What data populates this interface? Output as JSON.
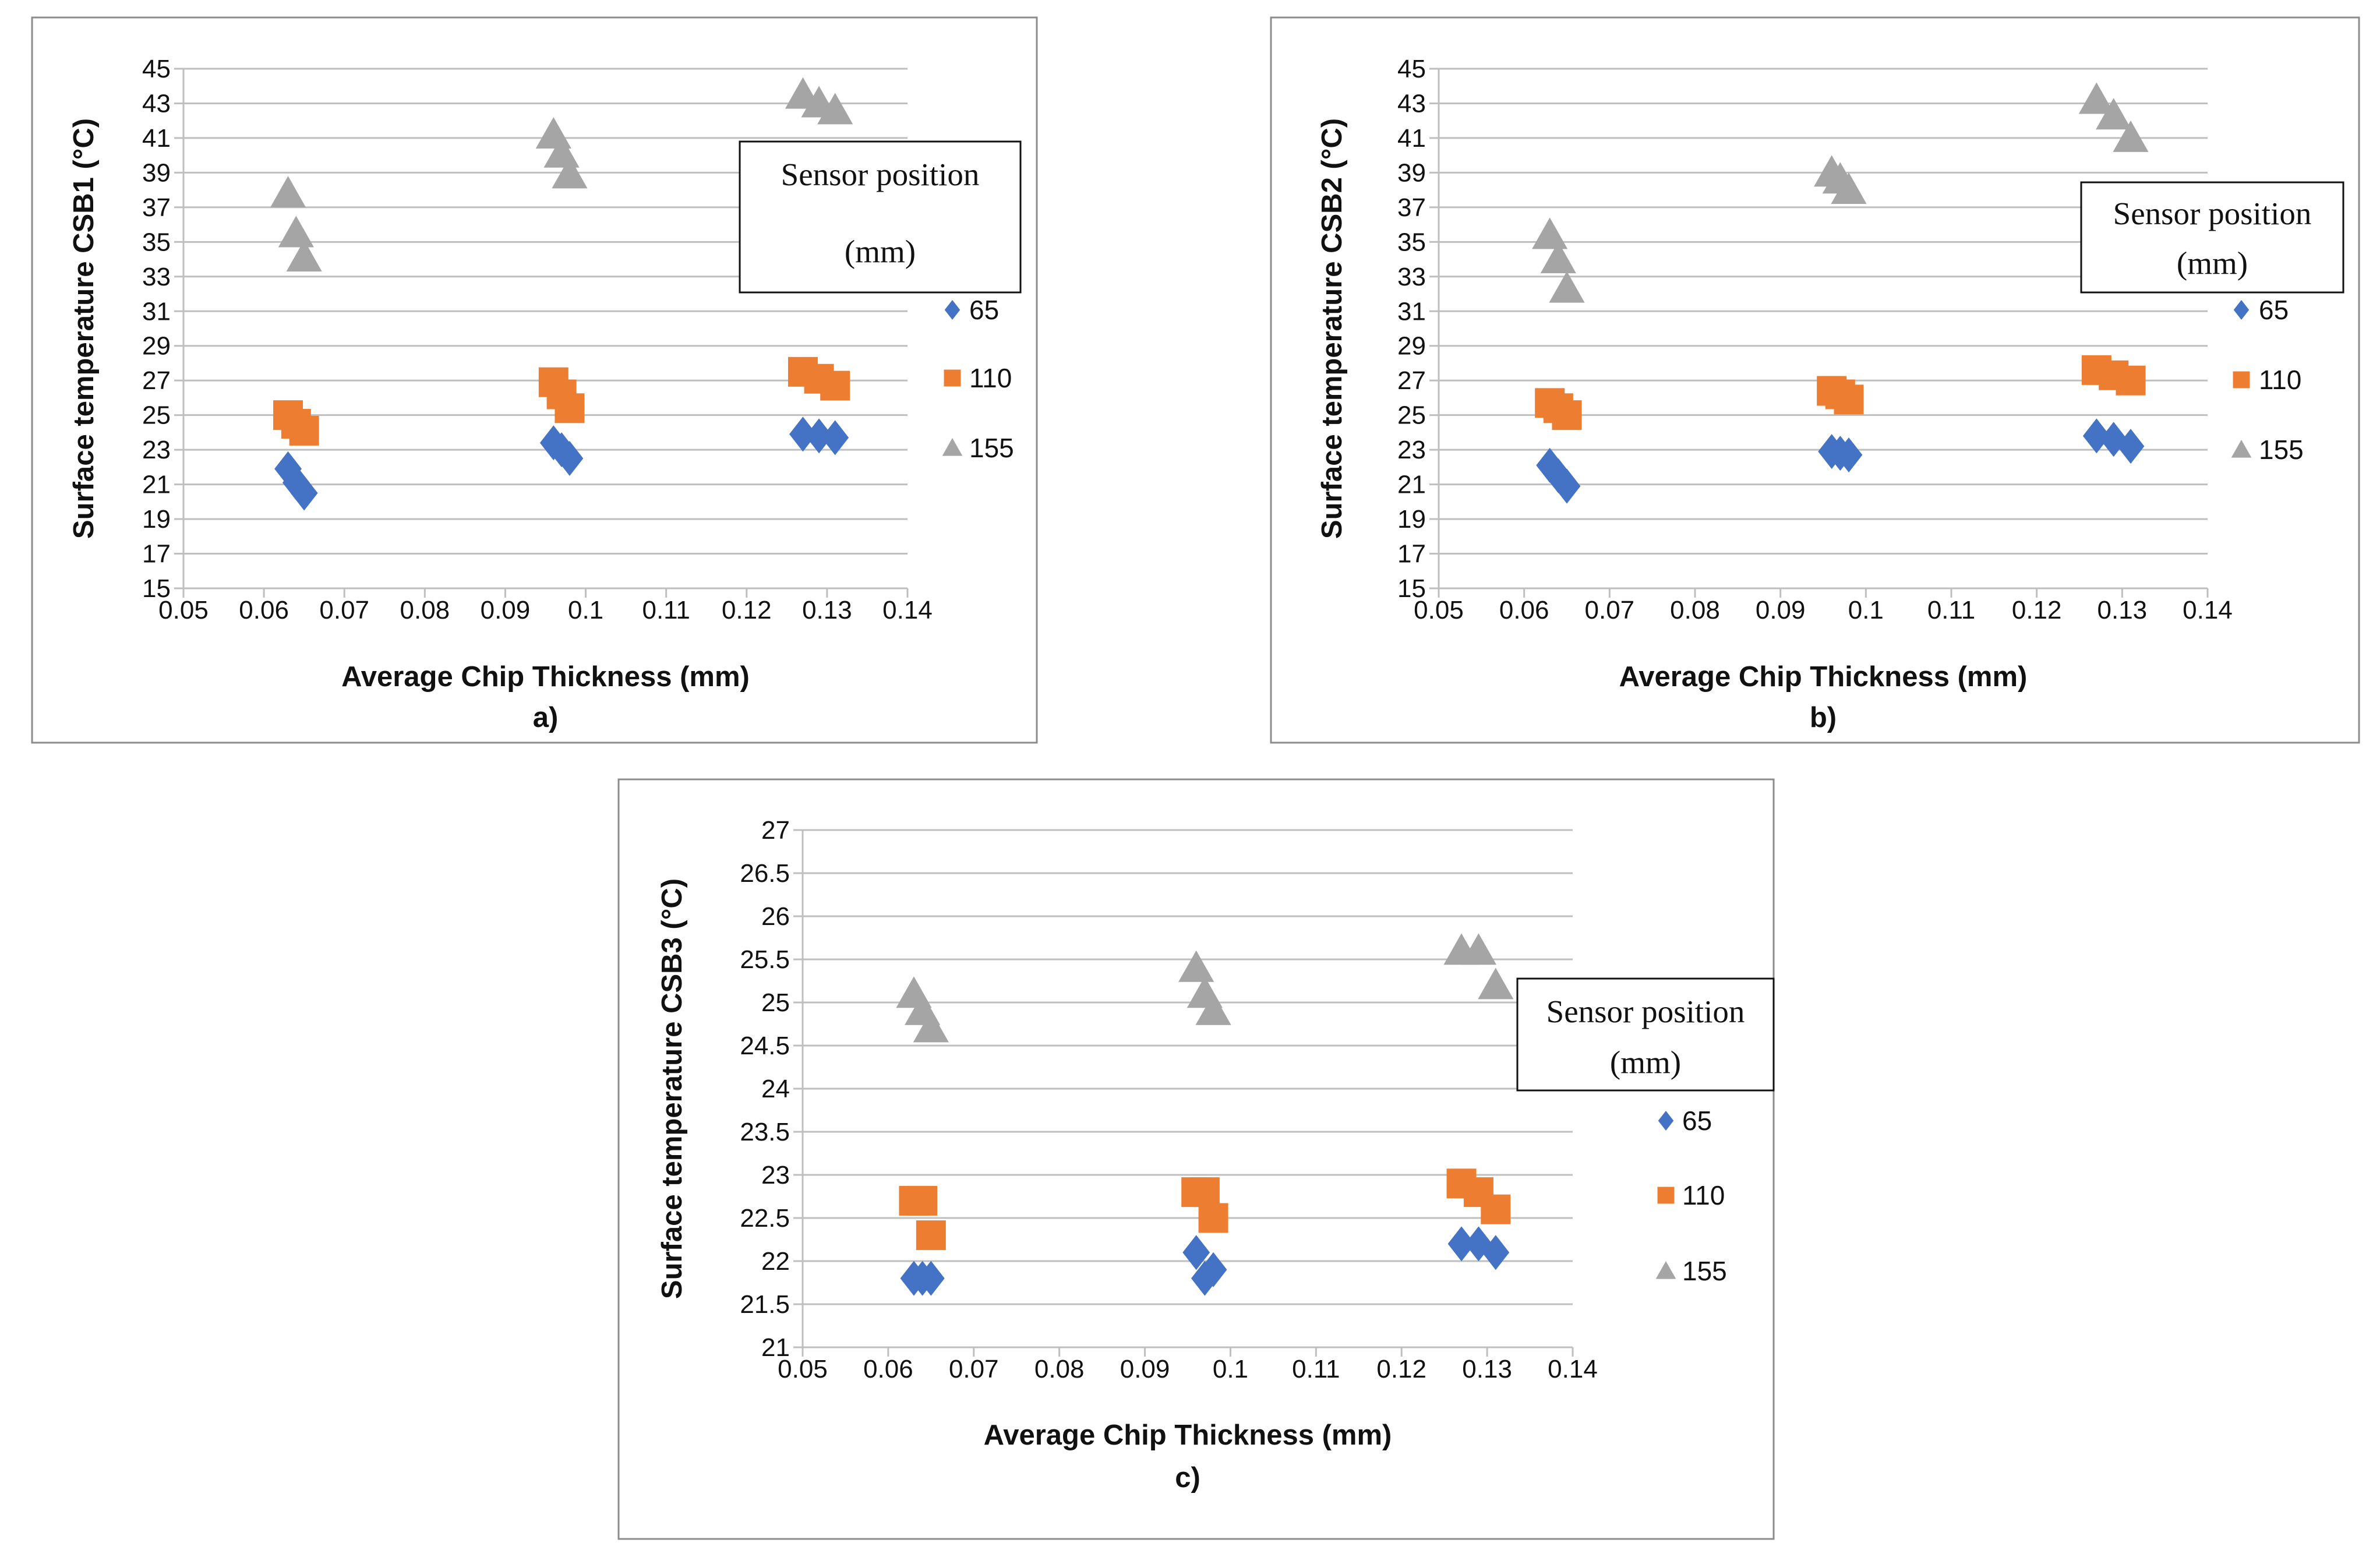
{
  "chart_data": [
    {
      "type": "scatter",
      "caption": "a)",
      "xlabel": "Average Chip Thickness (mm)",
      "ylabel": "Surface temperature CSB1 (°C)",
      "xlim": [
        0.05,
        0.14
      ],
      "ylim": [
        15,
        45
      ],
      "x_ticks": [
        "0.05",
        "0.06",
        "0.07",
        "0.08",
        "0.09",
        "0.1",
        "0.11",
        "0.12",
        "0.13",
        "0.14"
      ],
      "y_ticks": [
        "15",
        "17",
        "19",
        "21",
        "23",
        "25",
        "27",
        "29",
        "31",
        "33",
        "35",
        "37",
        "39",
        "41",
        "43",
        "45"
      ],
      "grid": "horizontal",
      "legend": {
        "title_line1": "Sensor position",
        "title_line2": "(mm)",
        "placement": "right"
      },
      "series": [
        {
          "name": "65",
          "marker": "diamond",
          "color": "#4472c4",
          "points": [
            [
              0.063,
              21.9
            ],
            [
              0.064,
              21.1
            ],
            [
              0.065,
              20.5
            ],
            [
              0.096,
              23.4
            ],
            [
              0.097,
              23.0
            ],
            [
              0.098,
              22.5
            ],
            [
              0.127,
              23.9
            ],
            [
              0.129,
              23.8
            ],
            [
              0.131,
              23.7
            ]
          ]
        },
        {
          "name": "110",
          "marker": "square",
          "color": "#ed7d31",
          "points": [
            [
              0.063,
              25.0
            ],
            [
              0.064,
              24.5
            ],
            [
              0.065,
              24.1
            ],
            [
              0.096,
              26.9
            ],
            [
              0.097,
              26.2
            ],
            [
              0.098,
              25.4
            ],
            [
              0.127,
              27.5
            ],
            [
              0.129,
              27.1
            ],
            [
              0.131,
              26.7
            ]
          ]
        },
        {
          "name": "155",
          "marker": "triangle",
          "color": "#a5a5a5",
          "points": [
            [
              0.063,
              37.8
            ],
            [
              0.064,
              35.5
            ],
            [
              0.065,
              34.1
            ],
            [
              0.096,
              41.2
            ],
            [
              0.097,
              40.1
            ],
            [
              0.098,
              38.9
            ],
            [
              0.127,
              43.5
            ],
            [
              0.129,
              43.0
            ],
            [
              0.131,
              42.6
            ]
          ]
        }
      ]
    },
    {
      "type": "scatter",
      "caption": "b)",
      "xlabel": "Average Chip Thickness (mm)",
      "ylabel": "Surface temperature CSB2 (°C)",
      "xlim": [
        0.05,
        0.14
      ],
      "ylim": [
        15,
        45
      ],
      "x_ticks": [
        "0.05",
        "0.06",
        "0.07",
        "0.08",
        "0.09",
        "0.1",
        "0.11",
        "0.12",
        "0.13",
        "0.14"
      ],
      "y_ticks": [
        "15",
        "17",
        "19",
        "21",
        "23",
        "25",
        "27",
        "29",
        "31",
        "33",
        "35",
        "37",
        "39",
        "41",
        "43",
        "45"
      ],
      "grid": "horizontal",
      "legend": {
        "title_line1": "Sensor position",
        "title_line2": "(mm)",
        "placement": "right"
      },
      "series": [
        {
          "name": "65",
          "marker": "diamond",
          "color": "#4472c4",
          "points": [
            [
              0.063,
              22.1
            ],
            [
              0.064,
              21.5
            ],
            [
              0.065,
              20.9
            ],
            [
              0.096,
              22.9
            ],
            [
              0.097,
              22.8
            ],
            [
              0.098,
              22.7
            ],
            [
              0.127,
              23.8
            ],
            [
              0.129,
              23.6
            ],
            [
              0.131,
              23.2
            ]
          ]
        },
        {
          "name": "110",
          "marker": "square",
          "color": "#ed7d31",
          "points": [
            [
              0.063,
              25.7
            ],
            [
              0.064,
              25.4
            ],
            [
              0.065,
              25.0
            ],
            [
              0.096,
              26.4
            ],
            [
              0.097,
              26.2
            ],
            [
              0.098,
              25.9
            ],
            [
              0.127,
              27.6
            ],
            [
              0.129,
              27.3
            ],
            [
              0.131,
              27.0
            ]
          ]
        },
        {
          "name": "155",
          "marker": "triangle",
          "color": "#a5a5a5",
          "points": [
            [
              0.063,
              35.4
            ],
            [
              0.064,
              34.0
            ],
            [
              0.065,
              32.3
            ],
            [
              0.096,
              39.0
            ],
            [
              0.097,
              38.6
            ],
            [
              0.098,
              38.0
            ],
            [
              0.127,
              43.2
            ],
            [
              0.129,
              42.3
            ],
            [
              0.131,
              41.0
            ]
          ]
        }
      ]
    },
    {
      "type": "scatter",
      "caption": "c)",
      "xlabel": "Average Chip Thickness (mm)",
      "ylabel": "Surface temperature CSB3 (°C)",
      "xlim": [
        0.05,
        0.14
      ],
      "ylim": [
        21,
        27
      ],
      "x_ticks": [
        "0.05",
        "0.06",
        "0.07",
        "0.08",
        "0.09",
        "0.1",
        "0.11",
        "0.12",
        "0.13",
        "0.14"
      ],
      "y_ticks": [
        "21",
        "21.5",
        "22",
        "22.5",
        "23",
        "23.5",
        "24",
        "24.5",
        "25",
        "25.5",
        "26",
        "26.5",
        "27"
      ],
      "grid": "horizontal",
      "legend": {
        "title_line1": "Sensor position",
        "title_line2": "(mm)",
        "placement": "right"
      },
      "series": [
        {
          "name": "65",
          "marker": "diamond",
          "color": "#4472c4",
          "points": [
            [
              0.063,
              21.8
            ],
            [
              0.064,
              21.8
            ],
            [
              0.065,
              21.8
            ],
            [
              0.096,
              22.1
            ],
            [
              0.097,
              21.8
            ],
            [
              0.098,
              21.9
            ],
            [
              0.127,
              22.2
            ],
            [
              0.129,
              22.2
            ],
            [
              0.131,
              22.1
            ]
          ]
        },
        {
          "name": "110",
          "marker": "square",
          "color": "#ed7d31",
          "points": [
            [
              0.063,
              22.7
            ],
            [
              0.064,
              22.7
            ],
            [
              0.065,
              22.3
            ],
            [
              0.096,
              22.8
            ],
            [
              0.097,
              22.8
            ],
            [
              0.098,
              22.5
            ],
            [
              0.127,
              22.9
            ],
            [
              0.129,
              22.8
            ],
            [
              0.131,
              22.6
            ]
          ]
        },
        {
          "name": "155",
          "marker": "triangle",
          "color": "#a5a5a5",
          "points": [
            [
              0.063,
              25.1
            ],
            [
              0.064,
              24.9
            ],
            [
              0.065,
              24.7
            ],
            [
              0.096,
              25.4
            ],
            [
              0.097,
              25.1
            ],
            [
              0.098,
              24.9
            ],
            [
              0.127,
              25.6
            ],
            [
              0.129,
              25.6
            ],
            [
              0.131,
              25.2
            ]
          ]
        }
      ]
    }
  ]
}
